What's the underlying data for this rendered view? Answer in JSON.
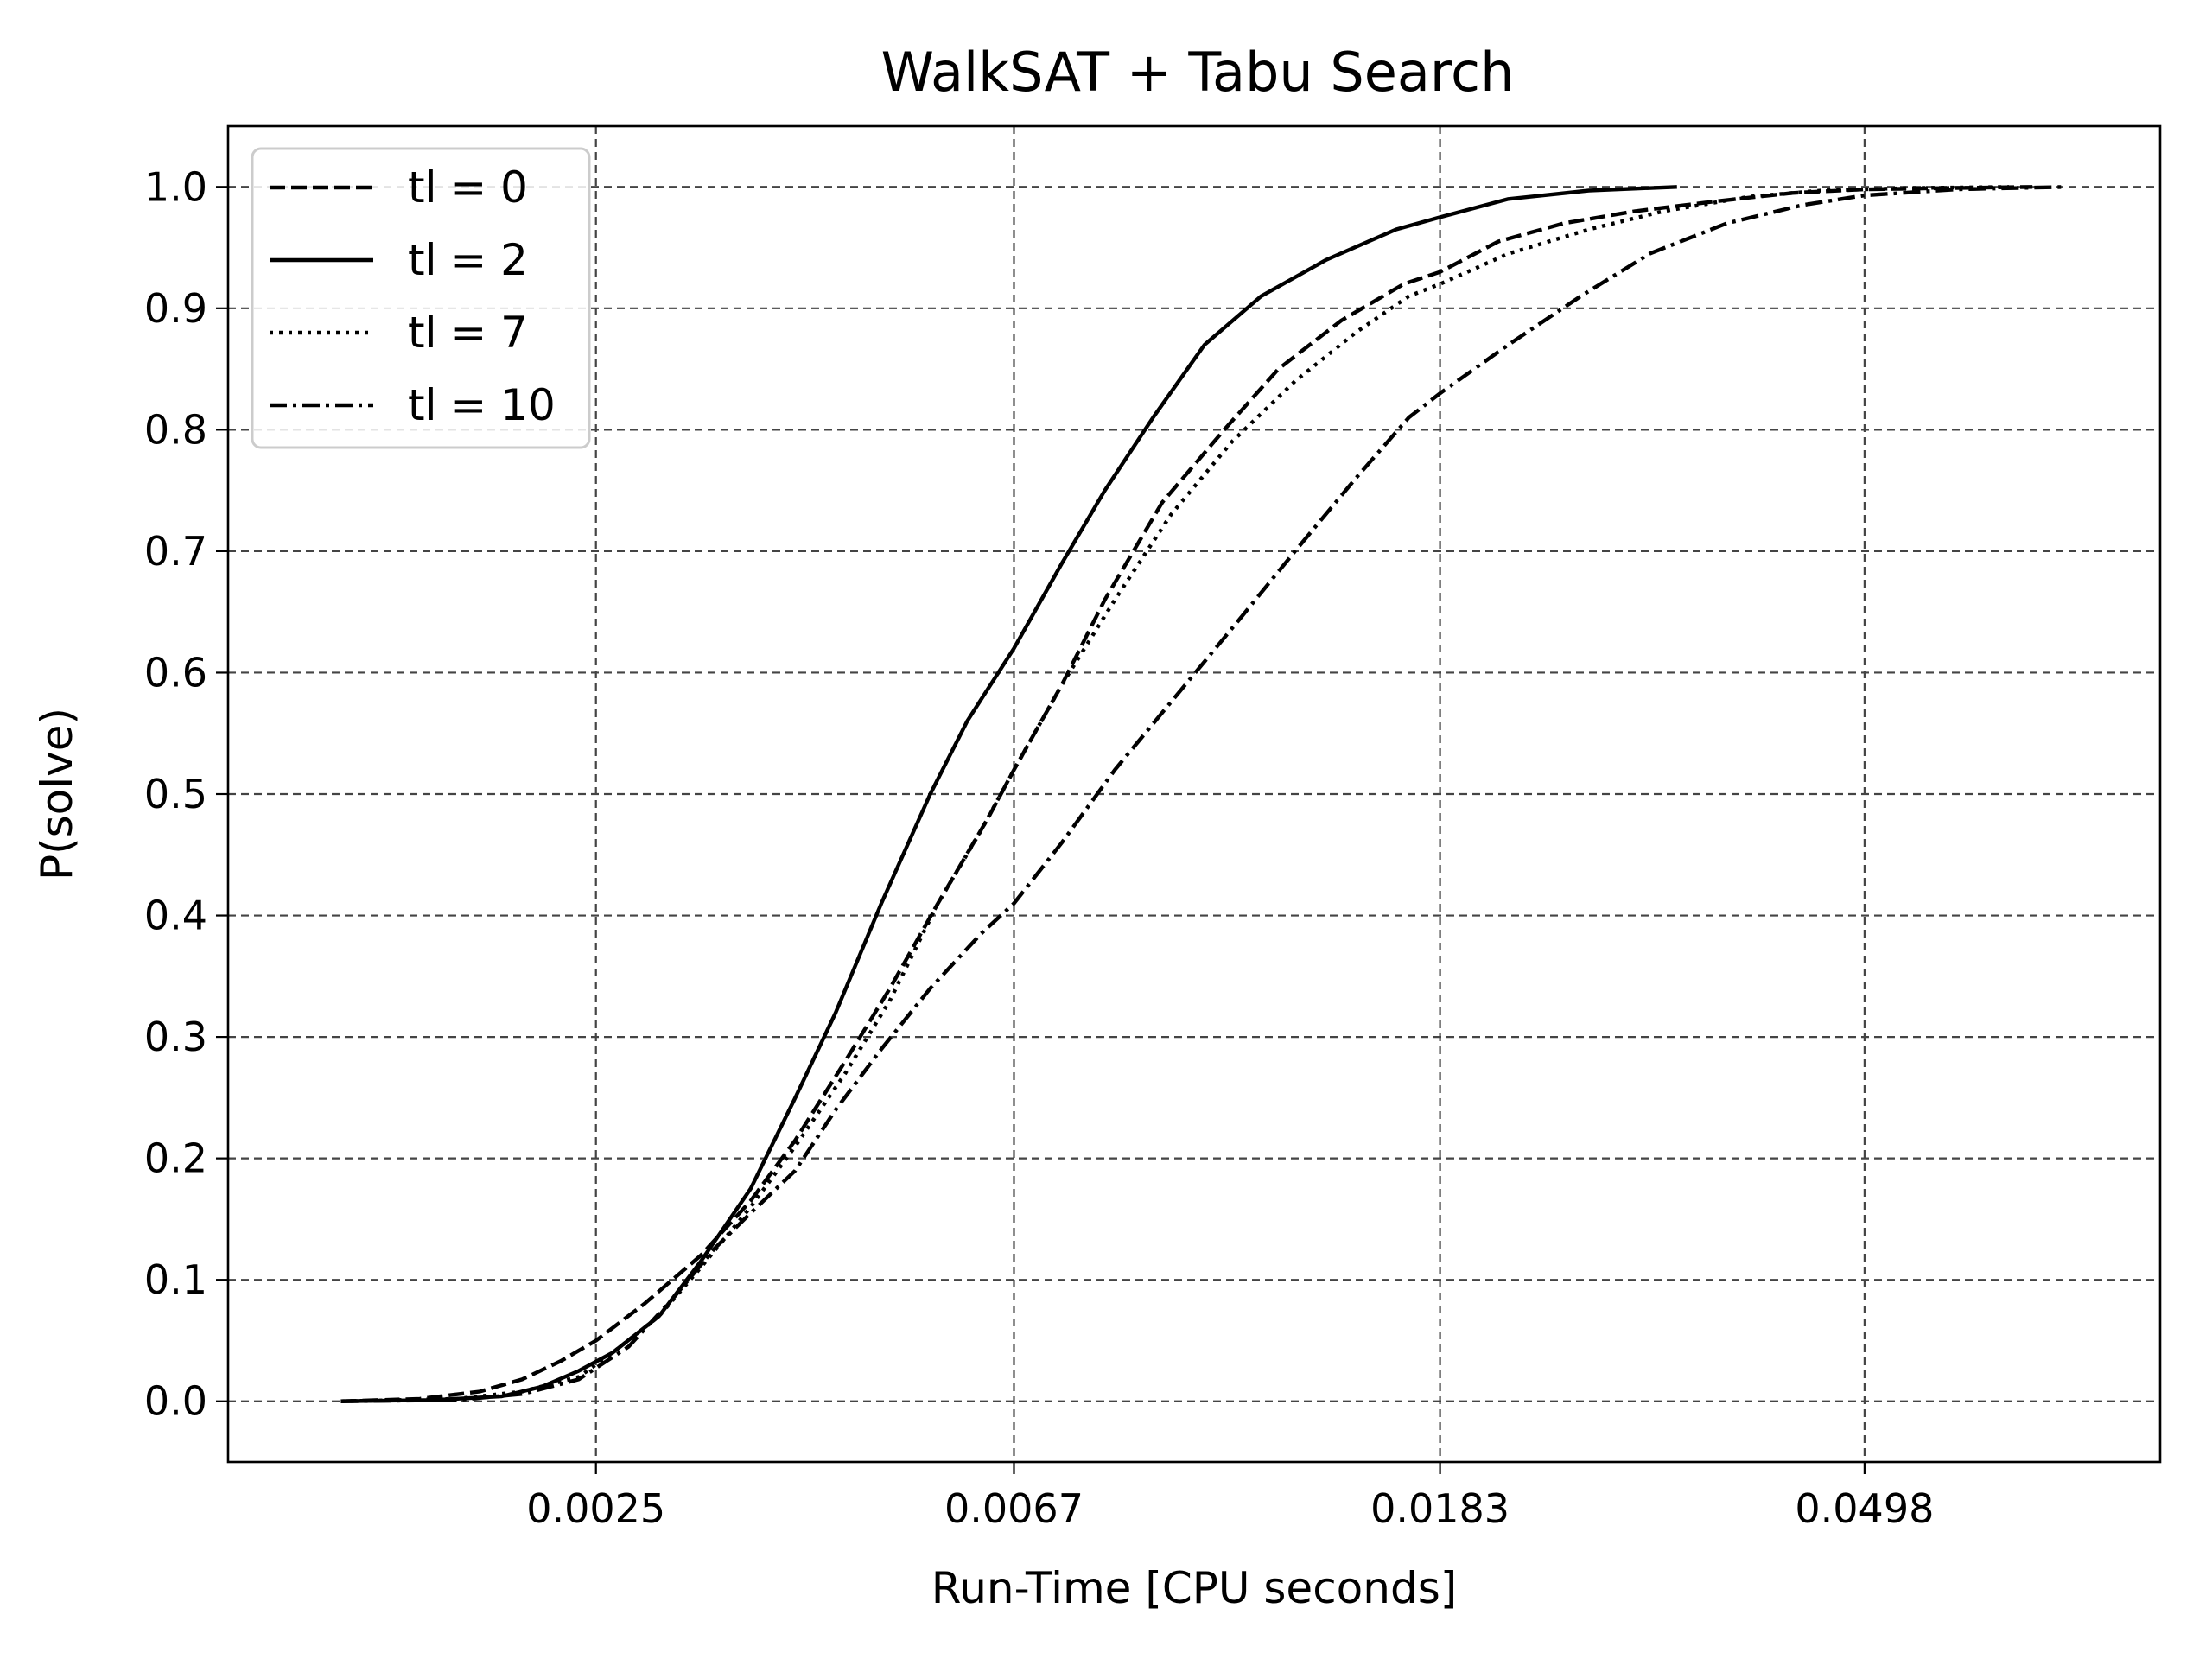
{
  "chart_data": {
    "type": "line",
    "title": "WalkSAT + Tabu Search",
    "xlabel": "Run-Time [CPU seconds]",
    "ylabel": "P(solve)",
    "x_scale": "log",
    "xlim": [
      0.00105,
      0.1
    ],
    "ylim": [
      -0.05,
      1.05
    ],
    "x_ticks": [
      {
        "value": 0.0025,
        "label": "0.0025"
      },
      {
        "value": 0.0067,
        "label": "0.0067"
      },
      {
        "value": 0.0183,
        "label": "0.0183"
      },
      {
        "value": 0.0498,
        "label": "0.0498"
      }
    ],
    "y_ticks": [
      {
        "value": 0.0,
        "label": "0.0"
      },
      {
        "value": 0.1,
        "label": "0.1"
      },
      {
        "value": 0.2,
        "label": "0.2"
      },
      {
        "value": 0.3,
        "label": "0.3"
      },
      {
        "value": 0.4,
        "label": "0.4"
      },
      {
        "value": 0.5,
        "label": "0.5"
      },
      {
        "value": 0.6,
        "label": "0.6"
      },
      {
        "value": 0.7,
        "label": "0.7"
      },
      {
        "value": 0.8,
        "label": "0.8"
      },
      {
        "value": 0.9,
        "label": "0.9"
      },
      {
        "value": 1.0,
        "label": "1.0"
      }
    ],
    "grid": true,
    "legend_position": "top-left",
    "series": [
      {
        "name": "tl = 0",
        "style": "dashed",
        "color": "#000000",
        "points": [
          [
            0.00137,
            0.0
          ],
          [
            0.00165,
            0.002
          ],
          [
            0.0019,
            0.008
          ],
          [
            0.0021,
            0.018
          ],
          [
            0.0023,
            0.033
          ],
          [
            0.0025,
            0.05
          ],
          [
            0.0028,
            0.08
          ],
          [
            0.0032,
            0.12
          ],
          [
            0.0036,
            0.165
          ],
          [
            0.004,
            0.215
          ],
          [
            0.0045,
            0.28
          ],
          [
            0.005,
            0.34
          ],
          [
            0.0056,
            0.41
          ],
          [
            0.0063,
            0.48
          ],
          [
            0.0067,
            0.52
          ],
          [
            0.0075,
            0.59
          ],
          [
            0.0083,
            0.66
          ],
          [
            0.0095,
            0.74
          ],
          [
            0.011,
            0.8
          ],
          [
            0.0125,
            0.85
          ],
          [
            0.0145,
            0.89
          ],
          [
            0.0168,
            0.92
          ],
          [
            0.0183,
            0.93
          ],
          [
            0.021,
            0.955
          ],
          [
            0.0245,
            0.97
          ],
          [
            0.029,
            0.98
          ],
          [
            0.035,
            0.988
          ],
          [
            0.042,
            0.995
          ],
          [
            0.0498,
            0.998
          ],
          [
            0.06,
            0.999
          ],
          [
            0.074,
            1.0
          ]
        ]
      },
      {
        "name": "tl = 2",
        "style": "solid",
        "color": "#000000",
        "points": [
          [
            0.00137,
            0.0
          ],
          [
            0.0017,
            0.001
          ],
          [
            0.002,
            0.004
          ],
          [
            0.0022,
            0.012
          ],
          [
            0.0024,
            0.025
          ],
          [
            0.0026,
            0.04
          ],
          [
            0.0029,
            0.07
          ],
          [
            0.0032,
            0.115
          ],
          [
            0.0036,
            0.175
          ],
          [
            0.004,
            0.25
          ],
          [
            0.0044,
            0.32
          ],
          [
            0.0049,
            0.41
          ],
          [
            0.0055,
            0.5
          ],
          [
            0.006,
            0.56
          ],
          [
            0.0067,
            0.62
          ],
          [
            0.0075,
            0.69
          ],
          [
            0.0083,
            0.75
          ],
          [
            0.0093,
            0.81
          ],
          [
            0.0105,
            0.87
          ],
          [
            0.012,
            0.91
          ],
          [
            0.014,
            0.94
          ],
          [
            0.0165,
            0.965
          ],
          [
            0.0183,
            0.975
          ],
          [
            0.0215,
            0.99
          ],
          [
            0.026,
            0.997
          ],
          [
            0.032,
            1.0
          ]
        ]
      },
      {
        "name": "tl = 7",
        "style": "dotted",
        "color": "#000000",
        "points": [
          [
            0.00137,
            0.0
          ],
          [
            0.0018,
            0.002
          ],
          [
            0.0021,
            0.008
          ],
          [
            0.0024,
            0.02
          ],
          [
            0.0026,
            0.04
          ],
          [
            0.0029,
            0.07
          ],
          [
            0.0032,
            0.11
          ],
          [
            0.0036,
            0.16
          ],
          [
            0.004,
            0.21
          ],
          [
            0.0045,
            0.27
          ],
          [
            0.005,
            0.33
          ],
          [
            0.0056,
            0.41
          ],
          [
            0.0062,
            0.47
          ],
          [
            0.0067,
            0.52
          ],
          [
            0.0075,
            0.59
          ],
          [
            0.0085,
            0.66
          ],
          [
            0.0097,
            0.73
          ],
          [
            0.0112,
            0.79
          ],
          [
            0.013,
            0.84
          ],
          [
            0.015,
            0.88
          ],
          [
            0.017,
            0.91
          ],
          [
            0.0183,
            0.92
          ],
          [
            0.0215,
            0.945
          ],
          [
            0.026,
            0.965
          ],
          [
            0.031,
            0.98
          ],
          [
            0.038,
            0.992
          ],
          [
            0.045,
            0.997
          ],
          [
            0.055,
            0.999
          ],
          [
            0.07,
            1.0
          ]
        ]
      },
      {
        "name": "tl = 10",
        "style": "dashdot",
        "color": "#000000",
        "points": [
          [
            0.00137,
            0.0
          ],
          [
            0.0018,
            0.001
          ],
          [
            0.0021,
            0.006
          ],
          [
            0.0024,
            0.018
          ],
          [
            0.0027,
            0.045
          ],
          [
            0.003,
            0.085
          ],
          [
            0.0033,
            0.125
          ],
          [
            0.0036,
            0.155
          ],
          [
            0.004,
            0.19
          ],
          [
            0.0044,
            0.24
          ],
          [
            0.0049,
            0.29
          ],
          [
            0.0055,
            0.34
          ],
          [
            0.0062,
            0.385
          ],
          [
            0.0067,
            0.41
          ],
          [
            0.0075,
            0.46
          ],
          [
            0.0085,
            0.52
          ],
          [
            0.0098,
            0.58
          ],
          [
            0.0113,
            0.64
          ],
          [
            0.013,
            0.7
          ],
          [
            0.015,
            0.76
          ],
          [
            0.017,
            0.81
          ],
          [
            0.0183,
            0.83
          ],
          [
            0.0215,
            0.87
          ],
          [
            0.0255,
            0.91
          ],
          [
            0.03,
            0.945
          ],
          [
            0.036,
            0.97
          ],
          [
            0.043,
            0.985
          ],
          [
            0.0498,
            0.993
          ],
          [
            0.062,
            0.998
          ],
          [
            0.08,
            1.0
          ]
        ]
      }
    ]
  }
}
